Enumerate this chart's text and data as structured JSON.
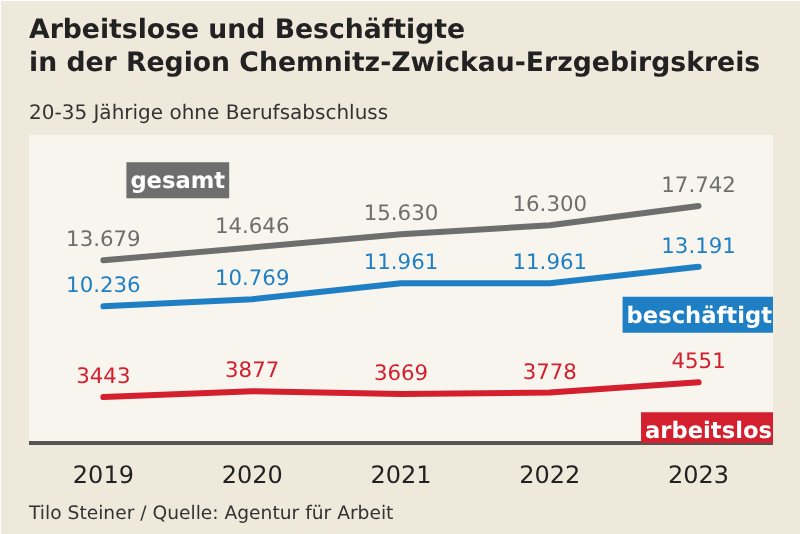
{
  "chart_data": {
    "type": "line",
    "title": "Arbeitslose und Beschäftigte\nin der Region Chemnitz-Zwickau-Erzgebirgskreis",
    "subtitle": "20-35 Jährige ohne Berufsabschluss",
    "annotations": [
      "Tilo Steiner / Quelle: Agentur für Arbeit"
    ],
    "categories": [
      "2019",
      "2020",
      "2021",
      "2022",
      "2023"
    ],
    "series": [
      {
        "name": "gesamt",
        "color": "#6e6e6e",
        "values": [
          13679,
          14646,
          15630,
          16300,
          17742
        ],
        "value_labels": [
          "13.679",
          "14.646",
          "15.630",
          "16.300",
          "17.742"
        ]
      },
      {
        "name": "beschäftigt",
        "color": "#1f7fc4",
        "values": [
          10236,
          10769,
          11961,
          11961,
          13191
        ],
        "value_labels": [
          "10.236",
          "10.769",
          "11.961",
          "11.961",
          "13.191"
        ]
      },
      {
        "name": "arbeitslos",
        "color": "#d4202e",
        "values": [
          3443,
          3877,
          3669,
          3778,
          4551
        ],
        "value_labels": [
          "3443",
          "3877",
          "3669",
          "3778",
          "4551"
        ]
      }
    ]
  }
}
